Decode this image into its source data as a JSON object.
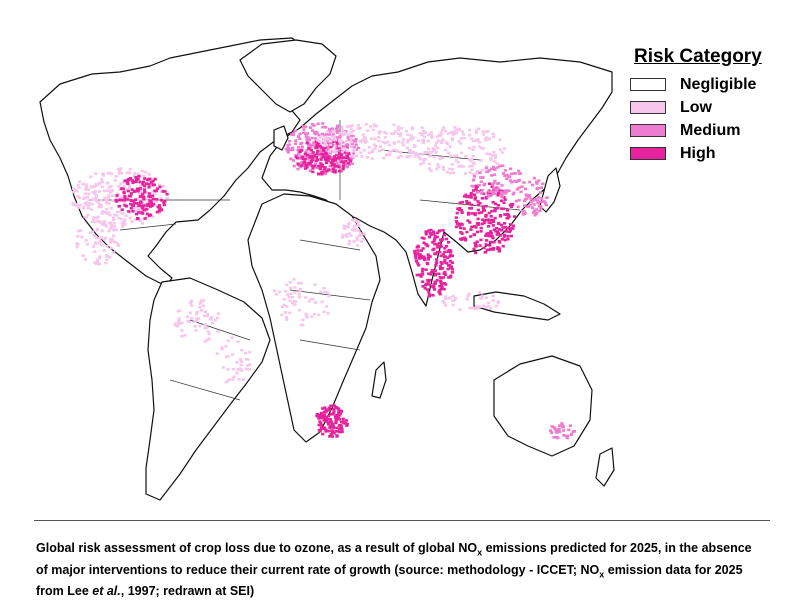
{
  "legend": {
    "title": "Risk Category",
    "items": [
      {
        "label": "Negligible",
        "color": "#ffffff"
      },
      {
        "label": "Low",
        "color": "#f7c6ec"
      },
      {
        "label": "Medium",
        "color": "#ee7dd2"
      },
      {
        "label": "High",
        "color": "#e6229c"
      }
    ]
  },
  "caption": {
    "line1_a": "Global risk assessment of crop loss due to ozone, as a result of global NO",
    "sub_x": "x",
    "line1_b": " emissions predicted for 2025, in the absence",
    "line2_a": "of major interventions to reduce their current rate of growth (source: methodology - ICCET; NO",
    "line2_b": " emission data for 2025",
    "line3_a": "from Lee ",
    "line3_em": "et al.",
    "line3_b": ", 1997; redrawn at SEI)"
  },
  "map": {
    "outline_color": "#111111",
    "high_color": "#e6229c",
    "medium_color": "#ee7dd2",
    "low_color": "#f7c6ec"
  }
}
